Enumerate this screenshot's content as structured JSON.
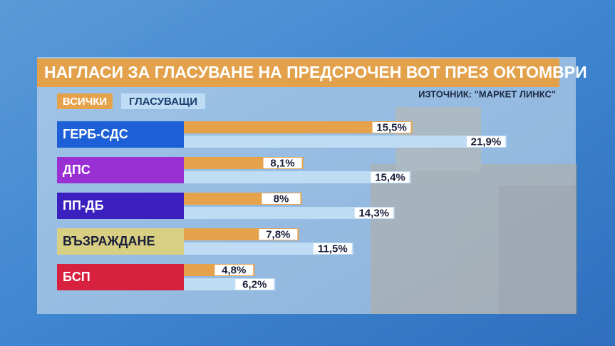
{
  "chart_data": {
    "type": "bar",
    "orientation": "horizontal",
    "title": "НАГЛАСИ ЗА ГЛАСУВАНЕ НА ПРЕДСРОЧЕН ВОТ ПРЕЗ ОКТОМВРИ",
    "source": "ИЗТОЧНИК: \"МАРКЕТ ЛИНКС\"",
    "categories": [
      "ГЕРБ-СДС",
      "ДПС",
      "ПП-ДБ",
      "ВЪЗРАЖДАНЕ",
      "БСП"
    ],
    "category_colors": [
      "#1c5fd6",
      "#9a2fd4",
      "#3b20bf",
      "#d9cf82",
      "#d7213f"
    ],
    "series": [
      {
        "name": "ВСИЧКИ",
        "color": "#e6a24a",
        "values": [
          15.5,
          8.1,
          8,
          7.8,
          4.8
        ],
        "value_labels": [
          "15,5%",
          "8,1%",
          "8%",
          "7,8%",
          "4,8%"
        ]
      },
      {
        "name": "ГЛАСУВАЩИ",
        "color": "#bfdcf5",
        "values": [
          21.9,
          15.4,
          14.3,
          11.5,
          6.2
        ],
        "value_labels": [
          "21,9%",
          "15,4%",
          "14,3%",
          "11,5%",
          "6,2%"
        ]
      }
    ],
    "xlim": [
      0,
      22
    ]
  }
}
